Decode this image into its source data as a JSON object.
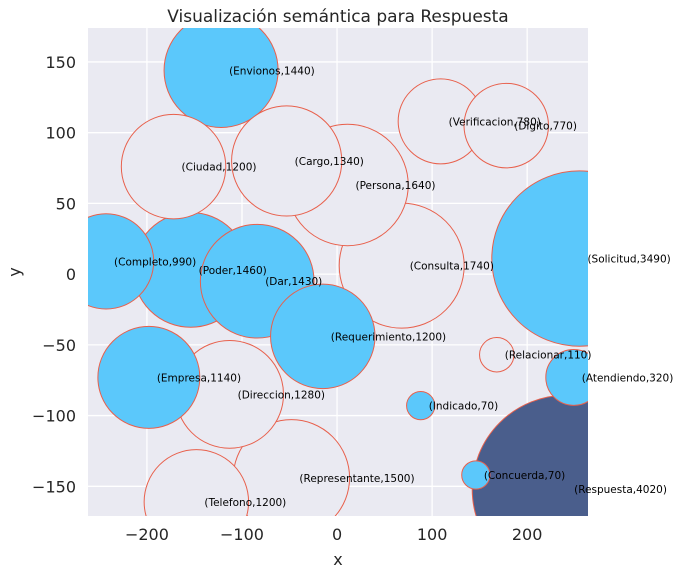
{
  "chart_data": {
    "type": "scatter",
    "title": "Visualización semántica para Respuesta",
    "xlabel": "x",
    "ylabel": "y",
    "xlim": [
      -262,
      264
    ],
    "ylim": [
      -171,
      174
    ],
    "xticks": [
      -200,
      -100,
      0,
      100,
      200
    ],
    "yticks": [
      -150,
      -100,
      -50,
      0,
      50,
      100,
      150
    ],
    "xtick_labels": [
      "−200",
      "−100",
      "0",
      "100",
      "200"
    ],
    "ytick_labels": [
      "−150",
      "−100",
      "−50",
      "0",
      "50",
      "100",
      "150"
    ],
    "grid": true,
    "colors": {
      "background": "#eaeaf2",
      "grid": "#ffffff",
      "highlight_fill": "#5bc8fb",
      "target_fill": "#4a5e8c",
      "edge": "#e8604c",
      "hollow_fill": "#eaeaf2"
    },
    "points": [
      {
        "label": "(Envionos,1440)",
        "word": "Envionos",
        "value": 1440,
        "x": -122,
        "y": 144,
        "style": "highlight"
      },
      {
        "label": "(Verificacion,780)",
        "word": "Verificacion",
        "value": 780,
        "x": 109,
        "y": 108,
        "style": "hollow"
      },
      {
        "label": "(Digito,770)",
        "word": "Digito",
        "value": 770,
        "x": 178,
        "y": 105,
        "style": "hollow"
      },
      {
        "label": "(Ciudad,1200)",
        "word": "Ciudad",
        "value": 1200,
        "x": -172,
        "y": 76,
        "style": "hollow"
      },
      {
        "label": "(Cargo,1340)",
        "word": "Cargo",
        "value": 1340,
        "x": -53,
        "y": 80,
        "style": "hollow"
      },
      {
        "label": "(Persona,1640)",
        "word": "Persona",
        "value": 1640,
        "x": 11,
        "y": 63,
        "style": "hollow"
      },
      {
        "label": "(Completo,990)",
        "word": "Completo",
        "value": 990,
        "x": -243,
        "y": 9,
        "style": "highlight"
      },
      {
        "label": "(Poder,1460)",
        "word": "Poder",
        "value": 1460,
        "x": -154,
        "y": 3,
        "style": "highlight"
      },
      {
        "label": "(Dar,1430)",
        "word": "Dar",
        "value": 1430,
        "x": -84,
        "y": -5,
        "style": "highlight"
      },
      {
        "label": "(Consulta,1740)",
        "word": "Consulta",
        "value": 1740,
        "x": 68,
        "y": 6,
        "style": "hollow"
      },
      {
        "label": "(Solicitud,3490)",
        "word": "Solicitud",
        "value": 3490,
        "x": 255,
        "y": 11,
        "style": "highlight"
      },
      {
        "label": "(Requerimiento,1200)",
        "word": "Requerimiento",
        "value": 1200,
        "x": -15,
        "y": -44,
        "style": "highlight"
      },
      {
        "label": "(Relacionar,110)",
        "word": "Relacionar",
        "value": 110,
        "x": 168,
        "y": -57,
        "style": "hollow"
      },
      {
        "label": "(Empresa,1140)",
        "word": "Empresa",
        "value": 1140,
        "x": -198,
        "y": -73,
        "style": "highlight"
      },
      {
        "label": "(Atendiendo,320)",
        "word": "Atendiendo",
        "value": 320,
        "x": 249,
        "y": -73,
        "style": "highlight"
      },
      {
        "label": "(Direccion,1280)",
        "word": "Direccion",
        "value": 1280,
        "x": -113,
        "y": -85,
        "style": "hollow"
      },
      {
        "label": "(Indicado,70)",
        "word": "Indicado",
        "value": 70,
        "x": 88,
        "y": -93,
        "style": "highlight"
      },
      {
        "label": "(Concuerda,70)",
        "word": "Concuerda",
        "value": 70,
        "x": 146,
        "y": -142,
        "style": "highlight"
      },
      {
        "label": "(Representante,1500)",
        "word": "Representante",
        "value": 1500,
        "x": -48,
        "y": -144,
        "style": "hollow"
      },
      {
        "label": "(Respuesta,4020)",
        "word": "Respuesta",
        "value": 4020,
        "x": 241,
        "y": -152,
        "style": "target"
      },
      {
        "label": "(Telefono,1200)",
        "word": "Telefono",
        "value": 1200,
        "x": -148,
        "y": -161,
        "style": "hollow"
      }
    ]
  }
}
